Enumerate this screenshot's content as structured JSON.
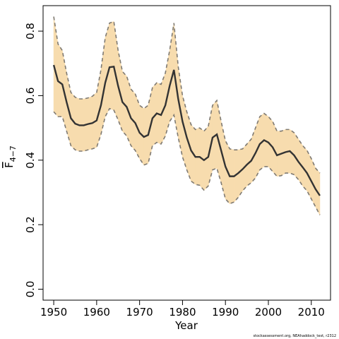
{
  "chart_data": {
    "type": "line",
    "xlabel": "Year",
    "ylabel": "F",
    "ylabel_sub": "4−7",
    "caption": "stockassessment.org, NEAhaddock_test, r2312",
    "x": [
      1950,
      1951,
      1952,
      1953,
      1954,
      1955,
      1956,
      1957,
      1958,
      1959,
      1960,
      1961,
      1962,
      1963,
      1964,
      1965,
      1966,
      1967,
      1968,
      1969,
      1970,
      1971,
      1972,
      1973,
      1974,
      1975,
      1976,
      1977,
      1978,
      1979,
      1980,
      1981,
      1982,
      1983,
      1984,
      1985,
      1986,
      1987,
      1988,
      1989,
      1990,
      1991,
      1992,
      1993,
      1994,
      1995,
      1996,
      1997,
      1998,
      1999,
      2000,
      2001,
      2002,
      2003,
      2004,
      2005,
      2006,
      2007,
      2008,
      2009,
      2010,
      2011,
      2012
    ],
    "values": [
      0.695,
      0.645,
      0.635,
      0.58,
      0.53,
      0.513,
      0.508,
      0.508,
      0.512,
      0.515,
      0.523,
      0.57,
      0.64,
      0.688,
      0.69,
      0.63,
      0.58,
      0.565,
      0.53,
      0.515,
      0.485,
      0.472,
      0.478,
      0.53,
      0.545,
      0.54,
      0.57,
      0.63,
      0.68,
      0.59,
      0.52,
      0.47,
      0.43,
      0.41,
      0.41,
      0.4,
      0.41,
      0.47,
      0.48,
      0.43,
      0.38,
      0.35,
      0.35,
      0.36,
      0.372,
      0.386,
      0.398,
      0.422,
      0.45,
      0.462,
      0.455,
      0.44,
      0.415,
      0.42,
      0.425,
      0.428,
      0.415,
      0.395,
      0.378,
      0.36,
      0.335,
      0.31,
      0.29
    ],
    "upper": [
      0.845,
      0.76,
      0.74,
      0.67,
      0.61,
      0.595,
      0.59,
      0.59,
      0.593,
      0.598,
      0.61,
      0.68,
      0.78,
      0.825,
      0.83,
      0.74,
      0.675,
      0.66,
      0.62,
      0.605,
      0.57,
      0.56,
      0.57,
      0.625,
      0.64,
      0.635,
      0.67,
      0.74,
      0.825,
      0.69,
      0.6,
      0.55,
      0.51,
      0.495,
      0.5,
      0.49,
      0.505,
      0.57,
      0.585,
      0.52,
      0.46,
      0.435,
      0.432,
      0.432,
      0.435,
      0.45,
      0.465,
      0.5,
      0.535,
      0.545,
      0.535,
      0.52,
      0.49,
      0.49,
      0.495,
      0.495,
      0.485,
      0.465,
      0.445,
      0.43,
      0.405,
      0.375,
      0.36
    ],
    "lower": [
      0.55,
      0.535,
      0.535,
      0.49,
      0.445,
      0.432,
      0.428,
      0.428,
      0.432,
      0.435,
      0.44,
      0.48,
      0.535,
      0.56,
      0.555,
      0.525,
      0.49,
      0.475,
      0.445,
      0.43,
      0.405,
      0.385,
      0.39,
      0.445,
      0.455,
      0.45,
      0.475,
      0.52,
      0.54,
      0.47,
      0.41,
      0.37,
      0.335,
      0.325,
      0.322,
      0.307,
      0.32,
      0.37,
      0.375,
      0.33,
      0.28,
      0.265,
      0.27,
      0.285,
      0.305,
      0.32,
      0.33,
      0.345,
      0.37,
      0.38,
      0.38,
      0.365,
      0.35,
      0.352,
      0.36,
      0.36,
      0.355,
      0.34,
      0.32,
      0.305,
      0.28,
      0.255,
      0.23
    ],
    "color": "#333333",
    "band_color": "#f7dcae",
    "band_edge_color": "#7f7a72",
    "xlim": [
      1947.52,
      2014.48
    ],
    "xticks": [
      1950,
      1960,
      1970,
      1980,
      1990,
      2000,
      2010
    ],
    "ylim": [
      -0.034,
      0.879
    ],
    "yticks": [
      {
        "value": 0,
        "label": "0.0"
      },
      0.2,
      0.4,
      0.6,
      0.8
    ]
  }
}
